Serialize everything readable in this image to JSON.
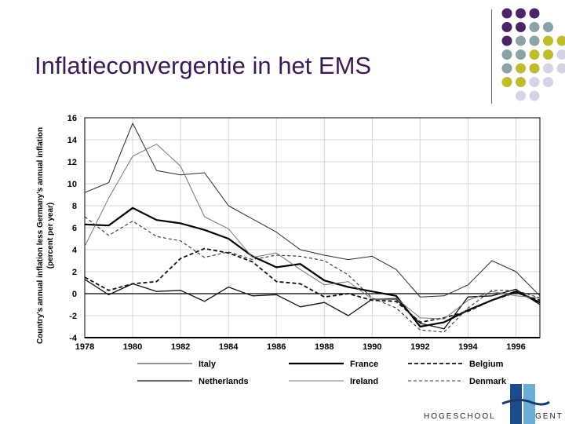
{
  "slide": {
    "title": "Inflatieconvergentie in het EMS"
  },
  "logo": {
    "text_left": "HOGESCHOOL",
    "text_right": "GENT"
  },
  "decor": {
    "dot_colors": {
      "purple": "#4a2467",
      "teal": "#8aa3a5",
      "olive": "#bdbd2e",
      "lavender": "#d4d2e4"
    },
    "dot_grid": [
      [
        "purple",
        "purple",
        "purple",
        "",
        ""
      ],
      [
        "purple",
        "purple",
        "teal",
        "teal",
        ""
      ],
      [
        "purple",
        "teal",
        "teal",
        "olive",
        "olive"
      ],
      [
        "teal",
        "teal",
        "olive",
        "olive",
        "lavender"
      ],
      [
        "teal",
        "olive",
        "olive",
        "lavender",
        "lavender"
      ],
      [
        "olive",
        "olive",
        "lavender",
        "lavender",
        ""
      ],
      [
        "",
        "lavender",
        "lavender",
        "",
        ""
      ]
    ]
  },
  "chart_data": {
    "type": "line",
    "ylabel": "Country's annual inflation less Germany's annual inflation (percent per year)",
    "xlabel": "",
    "ylim": [
      -4,
      16
    ],
    "xlim": [
      1978,
      1997
    ],
    "yticks": [
      -4,
      -2,
      0,
      2,
      4,
      6,
      8,
      10,
      12,
      14,
      16
    ],
    "xticks": [
      1978,
      1980,
      1982,
      1984,
      1986,
      1988,
      1990,
      1992,
      1994,
      1996
    ],
    "x": [
      1978,
      1979,
      1980,
      1981,
      1982,
      1983,
      1984,
      1985,
      1986,
      1987,
      1988,
      1989,
      1990,
      1991,
      1992,
      1993,
      1994,
      1995,
      1996,
      1997
    ],
    "series": [
      {
        "name": "Italy",
        "style": "thin",
        "values": [
          9.2,
          10.1,
          15.5,
          11.2,
          10.8,
          11.0,
          8.0,
          6.8,
          5.6,
          4.0,
          3.5,
          3.1,
          3.4,
          2.2,
          -0.3,
          -0.2,
          0.8,
          3.0,
          2.0,
          -0.2
        ]
      },
      {
        "name": "France",
        "style": "thick",
        "values": [
          6.3,
          6.2,
          7.8,
          6.7,
          6.4,
          5.8,
          5.0,
          3.4,
          2.4,
          2.7,
          1.2,
          0.6,
          0.2,
          -0.2,
          -3.0,
          -2.6,
          -1.5,
          -0.6,
          0.2,
          -0.8
        ]
      },
      {
        "name": "Belgium",
        "style": "dashed-bold",
        "values": [
          1.5,
          0.3,
          0.9,
          1.1,
          3.2,
          4.1,
          3.7,
          2.9,
          1.1,
          0.9,
          -0.3,
          0.0,
          -0.6,
          -0.7,
          -2.6,
          -2.2,
          -1.6,
          -0.6,
          0.1,
          -0.6
        ]
      },
      {
        "name": "Netherlands",
        "style": "medium",
        "values": [
          1.3,
          -0.1,
          0.9,
          0.2,
          0.3,
          -0.7,
          0.6,
          -0.2,
          -0.1,
          -1.2,
          -0.8,
          -2.0,
          -0.5,
          -0.5,
          -2.7,
          -3.2,
          -0.3,
          -0.2,
          0.4,
          -1.0
        ]
      },
      {
        "name": "Ireland",
        "style": "thin-light",
        "values": [
          4.3,
          8.7,
          12.5,
          13.6,
          11.6,
          7.0,
          5.9,
          3.3,
          3.7,
          2.2,
          0.8,
          1.1,
          -0.5,
          -0.4,
          -2.2,
          -2.3,
          -0.6,
          0.2,
          -0.2,
          -0.4
        ]
      },
      {
        "name": "Denmark",
        "style": "dashed",
        "values": [
          7.0,
          5.3,
          6.6,
          5.2,
          4.8,
          3.3,
          3.8,
          3.1,
          3.5,
          3.4,
          3.0,
          1.7,
          -0.4,
          -1.3,
          -3.3,
          -3.5,
          -1.3,
          0.3,
          0.3,
          -0.4
        ]
      }
    ],
    "legend": [
      [
        "Italy",
        "France",
        "Belgium"
      ],
      [
        "Netherlands",
        "Ireland",
        "Denmark"
      ]
    ]
  }
}
